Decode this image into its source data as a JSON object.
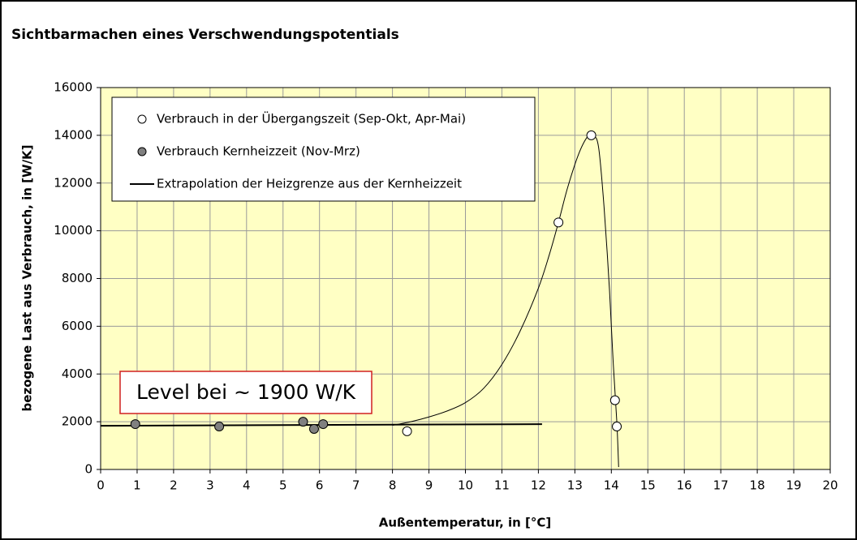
{
  "chart_data": {
    "type": "scatter",
    "title": "Sichtbarmachen eines Verschwendungspotentials",
    "x_label": "Außentemperatur, in [°C]",
    "y_label": "bezogene Last aus Verbrauch, in [W/K]",
    "annotation": "Level bei ~ 1900 W/K",
    "xlim": [
      0,
      20
    ],
    "xticks": [
      0,
      1,
      2,
      3,
      4,
      5,
      6,
      7,
      8,
      9,
      10,
      11,
      12,
      13,
      14,
      15,
      16,
      17,
      18,
      19,
      20
    ],
    "ylim": [
      0,
      16000
    ],
    "yticks": [
      0,
      2000,
      4000,
      6000,
      8000,
      10000,
      12000,
      14000,
      16000
    ],
    "grid": true,
    "background": "#ffffc4",
    "grid_color": "#9a9a9a",
    "series": [
      {
        "name": "Verbrauch in der Übergangszeit (Sep-Okt, Apr-Mai)",
        "kind": "marker",
        "color": "#ffffff",
        "x": [
          8.4,
          12.55,
          13.45,
          14.1,
          14.15
        ],
        "values": [
          1600,
          10350,
          14000,
          2900,
          1800
        ]
      },
      {
        "name": "Verbrauch Kernheizzeit (Nov-Mrz)",
        "kind": "marker",
        "color": "#808080",
        "x": [
          0.95,
          3.25,
          5.55,
          5.85,
          6.1
        ],
        "values": [
          1900,
          1800,
          2000,
          1700,
          1900
        ]
      },
      {
        "name": "Extrapolation der Heizgrenze aus der Kernheizzeit",
        "kind": "line",
        "color": "#000000",
        "x": [
          0,
          12.1
        ],
        "values": [
          1830,
          1900
        ]
      }
    ],
    "curve": {
      "color": "#000000",
      "x": [
        8,
        8.5,
        9,
        9.5,
        10,
        10.5,
        11,
        11.5,
        12,
        12.3,
        12.55,
        12.8,
        13.1,
        13.35,
        13.5,
        13.65,
        13.8,
        13.95,
        14.05,
        14.15,
        14.2
      ],
      "values": [
        1850,
        2000,
        2200,
        2450,
        2800,
        3400,
        4400,
        5800,
        7600,
        9000,
        10350,
        11800,
        13200,
        13950,
        14000,
        13500,
        11000,
        7500,
        4500,
        2000,
        100
      ]
    }
  }
}
